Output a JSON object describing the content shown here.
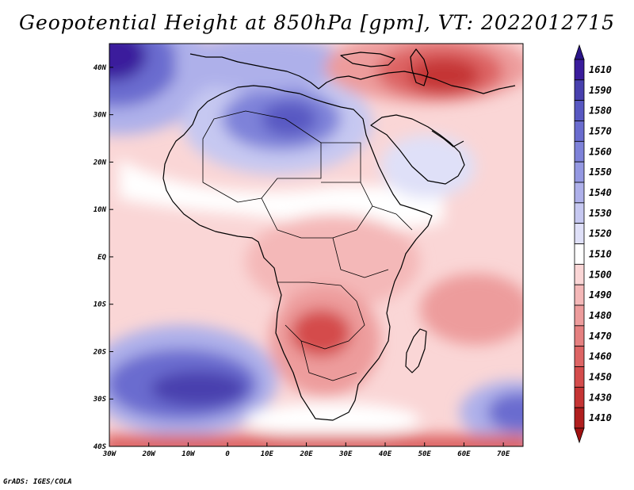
{
  "title": "Geopotential Height at 850hPa [gpm], VT: 2022012715",
  "credit": "GrADS: IGES/COLA",
  "map": {
    "lon_range": [
      -30,
      75
    ],
    "lat_range": [
      -40,
      45
    ],
    "lon_ticks": [
      {
        "value": -30,
        "label": "30W"
      },
      {
        "value": -20,
        "label": "20W"
      },
      {
        "value": -10,
        "label": "10W"
      },
      {
        "value": 0,
        "label": "0"
      },
      {
        "value": 10,
        "label": "10E"
      },
      {
        "value": 20,
        "label": "20E"
      },
      {
        "value": 30,
        "label": "30E"
      },
      {
        "value": 40,
        "label": "40E"
      },
      {
        "value": 50,
        "label": "50E"
      },
      {
        "value": 60,
        "label": "60E"
      },
      {
        "value": 70,
        "label": "70E"
      }
    ],
    "lat_ticks": [
      {
        "value": 40,
        "label": "40N"
      },
      {
        "value": 30,
        "label": "30N"
      },
      {
        "value": 20,
        "label": "20N"
      },
      {
        "value": 10,
        "label": "10N"
      },
      {
        "value": 0,
        "label": "EQ"
      },
      {
        "value": -10,
        "label": "10S"
      },
      {
        "value": -20,
        "label": "20S"
      },
      {
        "value": -30,
        "label": "30S"
      },
      {
        "value": -40,
        "label": "40S"
      }
    ]
  },
  "colorbar": {
    "levels": [
      {
        "label": "1610",
        "color": "#3a1c9c"
      },
      {
        "label": "1590",
        "color": "#4840ae"
      },
      {
        "label": "1580",
        "color": "#5858c2"
      },
      {
        "label": "1570",
        "color": "#6a6ccf"
      },
      {
        "label": "1560",
        "color": "#7e82d9"
      },
      {
        "label": "1550",
        "color": "#9498e2"
      },
      {
        "label": "1540",
        "color": "#aeb0ea"
      },
      {
        "label": "1530",
        "color": "#c6c8f1"
      },
      {
        "label": "1520",
        "color": "#dfe0f8"
      },
      {
        "label": "1510",
        "color": "#ffffff"
      },
      {
        "label": "1500",
        "color": "#fad6d6"
      },
      {
        "label": "1490",
        "color": "#f4b8b8"
      },
      {
        "label": "1480",
        "color": "#ed9c9c"
      },
      {
        "label": "1470",
        "color": "#e58080"
      },
      {
        "label": "1460",
        "color": "#dd6464"
      },
      {
        "label": "1450",
        "color": "#d44c4c"
      },
      {
        "label": "1430",
        "color": "#c53434"
      },
      {
        "label": "1410",
        "color": "#b01e1e"
      }
    ],
    "top_arrow_color": "#2a1488",
    "bottom_arrow_color": "#a01010"
  }
}
